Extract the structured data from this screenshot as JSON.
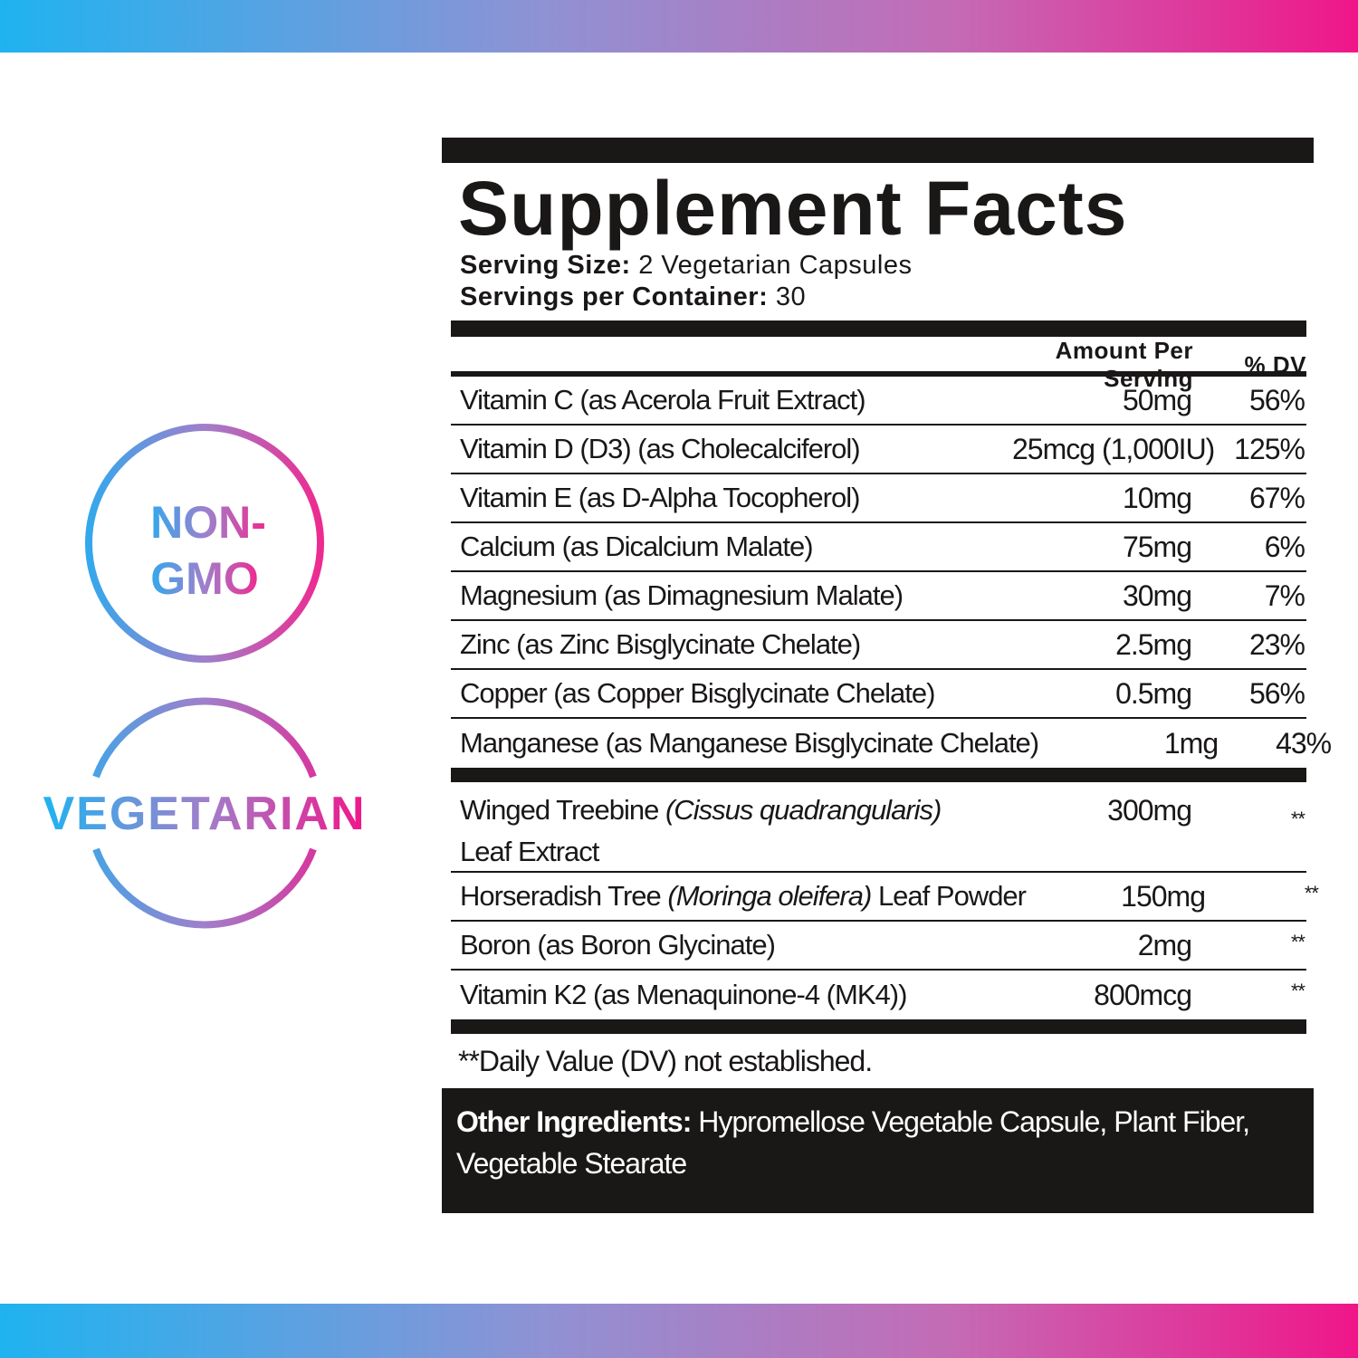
{
  "badges": [
    {
      "lines": [
        "NON-",
        "GMO"
      ]
    },
    {
      "text": "VEGETARIAN"
    }
  ],
  "colors": {
    "gradient_start": "#1fb3f0",
    "gradient_mid": "#a07fcb",
    "gradient_end": "#f0168a",
    "label": "#1a1717"
  },
  "label": {
    "title": "Supplement Facts",
    "serving_size_label": "Serving Size:",
    "serving_size": "2 Vegetarian Capsules",
    "servings_label": "Servings per Container:",
    "servings": "30",
    "col_amount": "Amount Per Serving",
    "col_dv": "% DV",
    "vitamins": [
      {
        "name": "Vitamin C (as Acerola Fruit Extract)",
        "amount": "50mg",
        "dv": "56%"
      },
      {
        "name": "Vitamin D (D3) (as Cholecalciferol)",
        "amount": "25mcg (1,000IU)",
        "dv": "125%"
      },
      {
        "name": "Vitamin E (as D-Alpha Tocopherol)",
        "amount": "10mg",
        "dv": "67%"
      },
      {
        "name": "Calcium (as Dicalcium Malate)",
        "amount": "75mg",
        "dv": "6%"
      },
      {
        "name": "Magnesium (as Dimagnesium Malate)",
        "amount": "30mg",
        "dv": "7%"
      },
      {
        "name": "Zinc (as Zinc Bisglycinate Chelate)",
        "amount": "2.5mg",
        "dv": "23%"
      },
      {
        "name": "Copper (as Copper Bisglycinate Chelate)",
        "amount": "0.5mg",
        "dv": "56%"
      },
      {
        "name": "Manganese (as Manganese Bisglycinate Chelate)",
        "amount": "1mg",
        "dv": "43%"
      }
    ],
    "others": [
      {
        "name": "Winged Treebine ",
        "latin": "(Cissus quadrangularis)",
        "suffix": " Leaf Extract",
        "amount": "300mg",
        "dv": "**"
      },
      {
        "name": "Horseradish Tree ",
        "latin": "(Moringa oleifera)",
        "suffix": " Leaf Powder",
        "amount": "150mg",
        "dv": "**"
      },
      {
        "name": "Boron (as Boron Glycinate)",
        "amount": "2mg",
        "dv": "**"
      },
      {
        "name": "Vitamin K2 (as Menaquinone-4 (MK4))",
        "amount": "800mcg",
        "dv": "**"
      }
    ],
    "footnote": "**Daily Value (DV) not established.",
    "other_label": "Other Ingredients:",
    "other_text": " Hypromellose Vegetable Capsule, Plant Fiber, Vegetable Stearate"
  }
}
